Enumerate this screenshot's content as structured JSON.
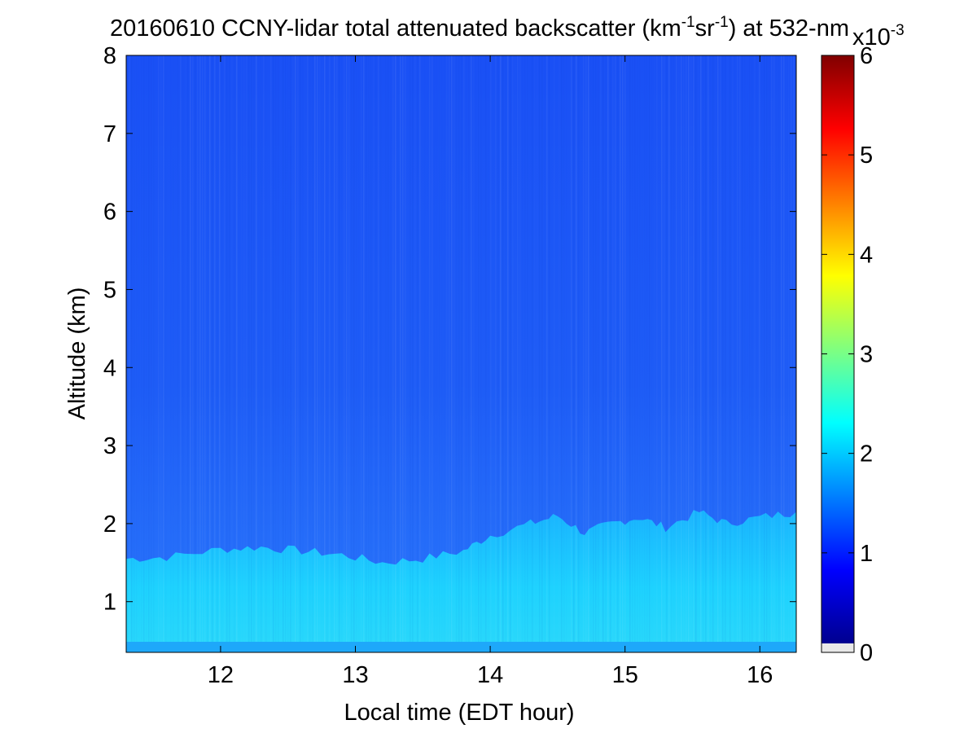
{
  "chart_data": {
    "type": "heatmap",
    "title": {
      "prefix": "20160610 CCNY-lidar total attenuated backscatter (km",
      "exp1": "-1",
      "middle": "sr",
      "exp2": "-1",
      "suffix": ") at 532-nm"
    },
    "xlabel": "Local time (EDT hour)",
    "ylabel": "Altitude (km)",
    "xlim": [
      11.3,
      16.27
    ],
    "ylim": [
      0.35,
      8
    ],
    "x_ticks": [
      12,
      13,
      14,
      15,
      16
    ],
    "y_ticks": [
      1,
      2,
      3,
      4,
      5,
      6,
      7,
      8
    ],
    "colorbar": {
      "colormap": "jet",
      "range": [
        0,
        6
      ],
      "ticks": [
        0,
        1,
        2,
        3,
        4,
        5,
        6
      ],
      "multiplier": {
        "base": "x10",
        "exponent": "-3"
      },
      "under_color": "#e8e8e8"
    },
    "boundary_layer_top_km": [
      [
        11.3,
        1.55
      ],
      [
        11.6,
        1.57
      ],
      [
        12.0,
        1.67
      ],
      [
        12.3,
        1.7
      ],
      [
        12.6,
        1.65
      ],
      [
        12.9,
        1.6
      ],
      [
        13.2,
        1.5
      ],
      [
        13.5,
        1.55
      ],
      [
        13.8,
        1.65
      ],
      [
        14.0,
        1.85
      ],
      [
        14.3,
        2.0
      ],
      [
        14.5,
        2.1
      ],
      [
        14.7,
        1.88
      ],
      [
        14.9,
        2.0
      ],
      [
        15.1,
        2.08
      ],
      [
        15.3,
        1.95
      ],
      [
        15.55,
        2.15
      ],
      [
        15.75,
        2.0
      ],
      [
        16.0,
        2.08
      ],
      [
        16.27,
        2.15
      ]
    ],
    "boundary_layer_value_e3": 2.0,
    "surface_layer_value_e3": 2.25,
    "free_troposphere_value_e3": 1.0
  }
}
